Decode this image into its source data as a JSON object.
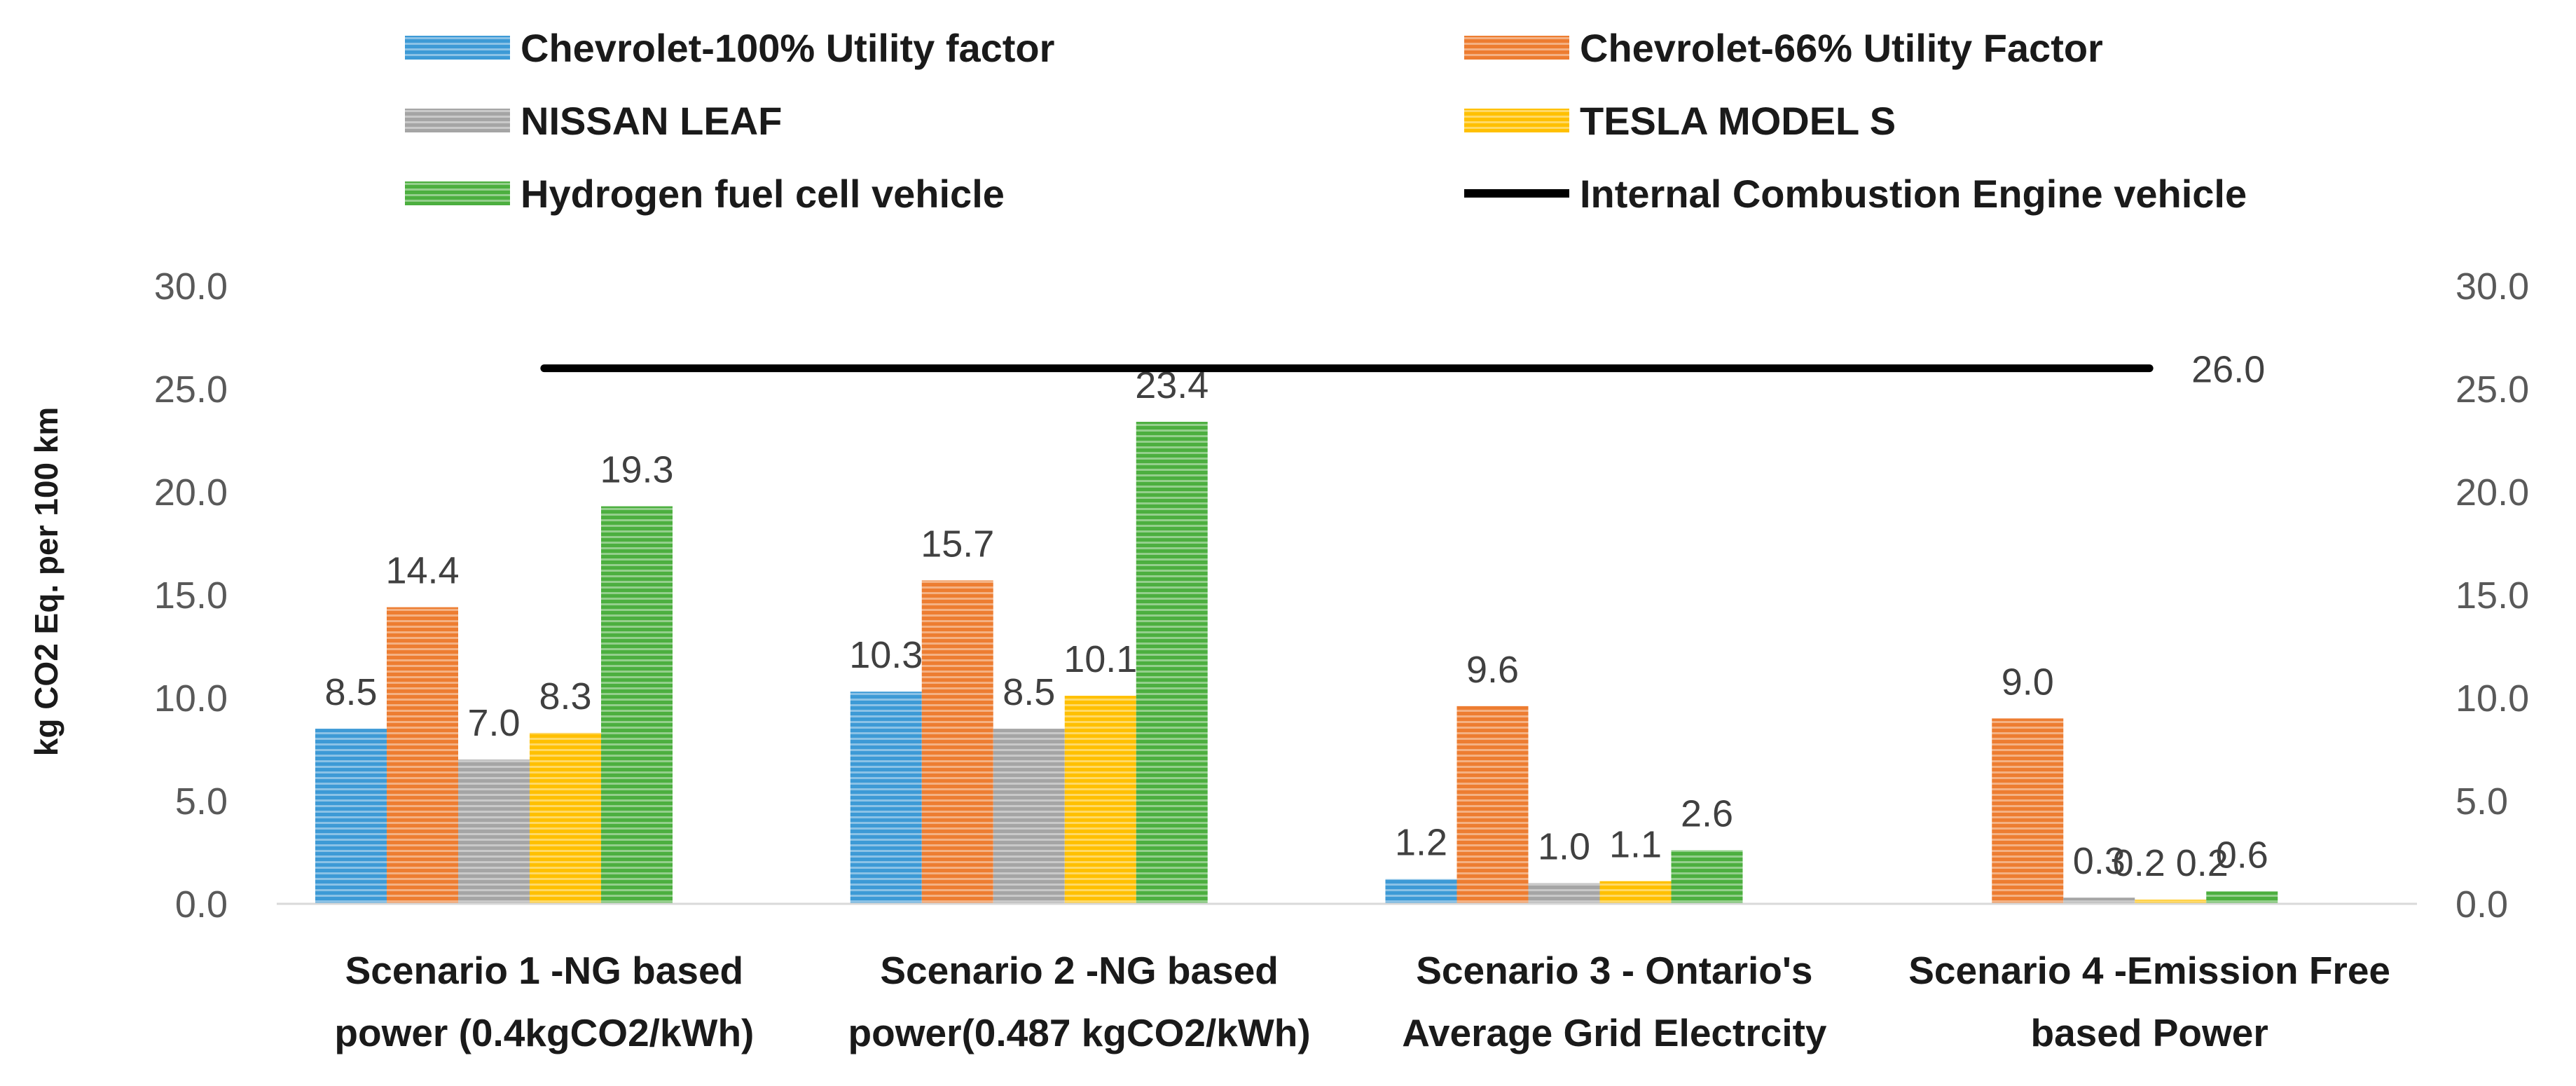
{
  "chart_data": {
    "type": "bar",
    "title": "",
    "ylabel": "kg CO2 Eq. per 100 km",
    "xlabel": "",
    "ylim": [
      0,
      30
    ],
    "yticks": [
      "0.0",
      "5.0",
      "10.0",
      "15.0",
      "20.0",
      "25.0",
      "30.0"
    ],
    "secondary_yticks": [
      "0.0",
      "5.0",
      "10.0",
      "15.0",
      "20.0",
      "25.0",
      "30.0"
    ],
    "grid": false,
    "legend_position": "top",
    "categories": [
      [
        "Scenario 1 -NG based",
        "power (0.4kgCO2/kWh)"
      ],
      [
        "Scenario 2 -NG based",
        "power(0.487 kgCO2/kWh)"
      ],
      [
        "Scenario 3 - Ontario's",
        "Average Grid Electrcity"
      ],
      [
        "Scenario 4 -Emission Free",
        "based Power"
      ]
    ],
    "series": [
      {
        "name": "Chevrolet-100% Utility factor",
        "color": "#3d9ad6",
        "values": [
          8.5,
          10.3,
          1.2,
          0.0
        ],
        "labels": [
          "8.5",
          "10.3",
          "1.2",
          ""
        ]
      },
      {
        "name": "Chevrolet-66% Utility Factor",
        "color": "#ed7d31",
        "values": [
          14.4,
          15.7,
          9.6,
          9.0
        ],
        "labels": [
          "14.4",
          "15.7",
          "9.6",
          "9.0"
        ]
      },
      {
        "name": "NISSAN LEAF",
        "color": "#a5a5a5",
        "values": [
          7.0,
          8.5,
          1.0,
          0.3
        ],
        "labels": [
          "7.0",
          "8.5",
          "1.0",
          "0.3"
        ]
      },
      {
        "name": "TESLA MODEL S",
        "color": "#ffc000",
        "values": [
          8.3,
          10.1,
          1.1,
          0.2
        ],
        "labels": [
          "8.3",
          "10.1",
          "1.1",
          "0.2 0.2"
        ]
      },
      {
        "name": "Hydrogen fuel cell vehicle",
        "color": "#4caf3f",
        "values": [
          19.3,
          23.4,
          2.6,
          0.6
        ],
        "labels": [
          "19.3",
          "23.4",
          "2.6",
          "0.6"
        ]
      }
    ],
    "line_series": {
      "name": "Internal Combustion Engine vehicle",
      "color": "#000000",
      "value": 26.0,
      "label": "26.0"
    }
  }
}
